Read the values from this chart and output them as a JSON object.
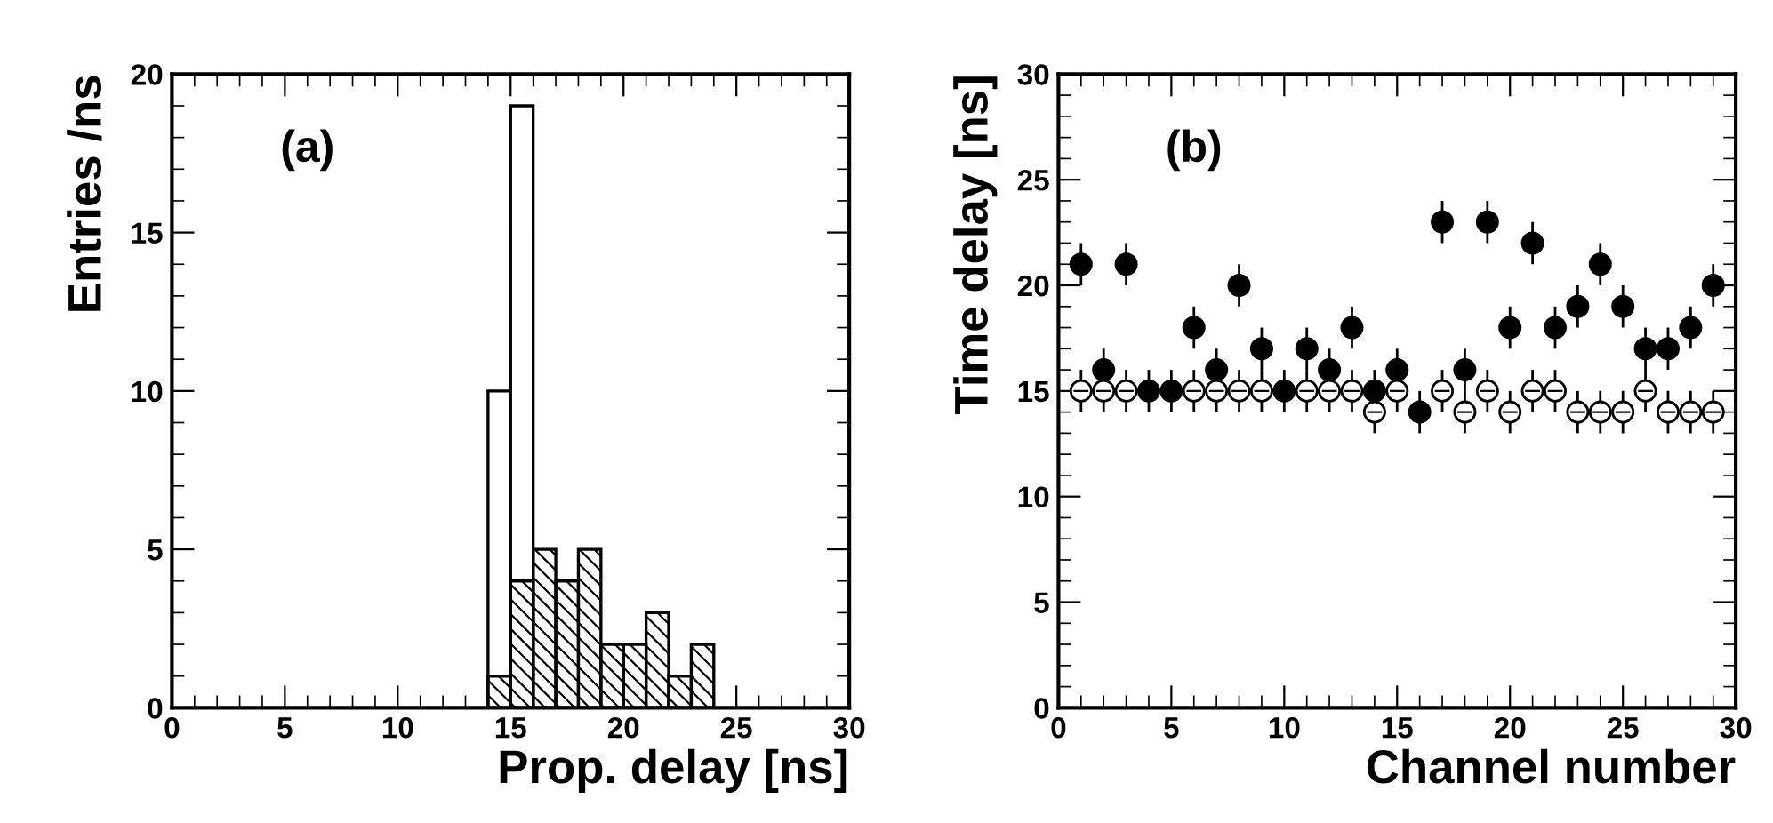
{
  "chart_data": [
    {
      "type": "histogram",
      "xlabel": "Prop. delay [ns]",
      "ylabel": "Entries /ns",
      "annotations": [
        "(a)"
      ],
      "bins": [
        14,
        15,
        16,
        17,
        18,
        19,
        20,
        21,
        22,
        23,
        24
      ],
      "series": [
        {
          "color": "#ffffff",
          "values": [
            10,
            19,
            0,
            0,
            0,
            0,
            0,
            0,
            0,
            0
          ]
        },
        {
          "color": "#000000",
          "values": [
            1,
            4,
            5,
            4,
            5,
            2,
            2,
            3,
            1,
            2
          ]
        }
      ],
      "xlim": [
        0,
        30
      ],
      "xticks": [
        0,
        5,
        10,
        15,
        20,
        25,
        30
      ],
      "ylim": [
        0,
        20
      ],
      "yticks": [
        0,
        5,
        10,
        15,
        20
      ],
      "grid": false,
      "legend": false
    },
    {
      "type": "scatter",
      "xlabel": "Channel number",
      "ylabel": "Time delay [ns]",
      "annotations": [
        "(b)"
      ],
      "marker": "circle",
      "x": [
        1,
        2,
        3,
        4,
        5,
        6,
        7,
        8,
        9,
        10,
        11,
        12,
        13,
        14,
        15,
        16,
        17,
        18,
        19,
        20,
        21,
        22,
        23,
        24,
        25,
        26,
        27,
        28,
        29
      ],
      "series": [
        {
          "color": "#ffffff",
          "values": [
            15,
            15,
            15,
            null,
            null,
            15,
            15,
            15,
            15,
            null,
            15,
            15,
            15,
            14,
            15,
            null,
            15,
            14,
            15,
            14,
            15,
            15,
            14,
            14,
            14,
            15,
            14,
            14,
            14
          ],
          "errors": [
            1,
            1,
            1,
            null,
            null,
            1,
            1,
            1,
            1,
            null,
            1,
            1,
            1,
            1,
            1,
            null,
            1,
            1,
            1,
            1,
            1,
            1,
            1,
            1,
            1,
            1,
            1,
            1,
            1
          ]
        },
        {
          "color": "#000000",
          "values": [
            21,
            16,
            21,
            15,
            15,
            18,
            16,
            20,
            17,
            15,
            17,
            16,
            18,
            15,
            16,
            14,
            23,
            16,
            23,
            18,
            22,
            18,
            19,
            21,
            19,
            17,
            17,
            18,
            20
          ],
          "errors": [
            1,
            1,
            1,
            1,
            1,
            1,
            1,
            1,
            1,
            1,
            1,
            1,
            1,
            1,
            1,
            1,
            1,
            1,
            1,
            1,
            1,
            1,
            1,
            1,
            1,
            1,
            1,
            1,
            1
          ]
        }
      ],
      "xlim": [
        0,
        30
      ],
      "xticks": [
        0,
        5,
        10,
        15,
        20,
        25,
        30
      ],
      "ylim": [
        0,
        30
      ],
      "yticks": [
        0,
        5,
        10,
        15,
        20,
        25,
        30
      ],
      "grid": false,
      "legend": false
    }
  ]
}
